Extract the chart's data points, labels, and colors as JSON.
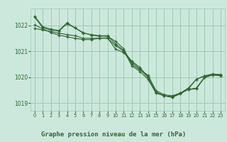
{
  "title": "Graphe pression niveau de la mer (hPa)",
  "bg_color": "#cce8dc",
  "grid_color": "#99ccb3",
  "line_color": "#336633",
  "ylim": [
    1018.7,
    1022.65
  ],
  "xlim": [
    -0.5,
    23.5
  ],
  "yticks": [
    1019,
    1020,
    1021,
    1022
  ],
  "xticks": [
    0,
    1,
    2,
    3,
    4,
    5,
    6,
    7,
    8,
    9,
    10,
    11,
    12,
    13,
    14,
    15,
    16,
    17,
    18,
    19,
    20,
    21,
    22,
    23
  ],
  "series": [
    [
      1022.35,
      1021.95,
      1021.85,
      1021.8,
      1022.1,
      1021.9,
      1021.72,
      1021.62,
      1021.58,
      1021.58,
      1021.38,
      1021.1,
      1020.5,
      1020.28,
      1020.08,
      1019.48,
      1019.32,
      1019.28,
      1019.38,
      1019.58,
      1019.92,
      1020.05,
      1020.12,
      1020.1
    ],
    [
      1021.88,
      1021.82,
      1021.76,
      1021.7,
      1021.64,
      1021.6,
      1021.5,
      1021.5,
      1021.5,
      1021.5,
      1021.22,
      1021.0,
      1020.62,
      1020.38,
      1020.02,
      1019.42,
      1019.28,
      1019.22,
      1019.38,
      1019.52,
      1019.58,
      1020.0,
      1020.1,
      1020.08
    ],
    [
      1022.32,
      1021.9,
      1021.82,
      1021.78,
      1022.06,
      1021.9,
      1021.7,
      1021.64,
      1021.6,
      1021.6,
      1021.28,
      1021.04,
      1020.44,
      1020.22,
      1019.92,
      1019.38,
      1019.28,
      1019.22,
      1019.35,
      1019.54,
      1019.92,
      1020.04,
      1020.1,
      1020.08
    ],
    [
      1022.02,
      1021.86,
      1021.72,
      1021.62,
      1021.56,
      1021.5,
      1021.45,
      1021.45,
      1021.5,
      1021.52,
      1021.08,
      1020.95,
      1020.58,
      1020.32,
      1019.98,
      1019.42,
      1019.28,
      1019.25,
      1019.38,
      1019.52,
      1019.55,
      1019.98,
      1020.08,
      1020.05
    ]
  ]
}
